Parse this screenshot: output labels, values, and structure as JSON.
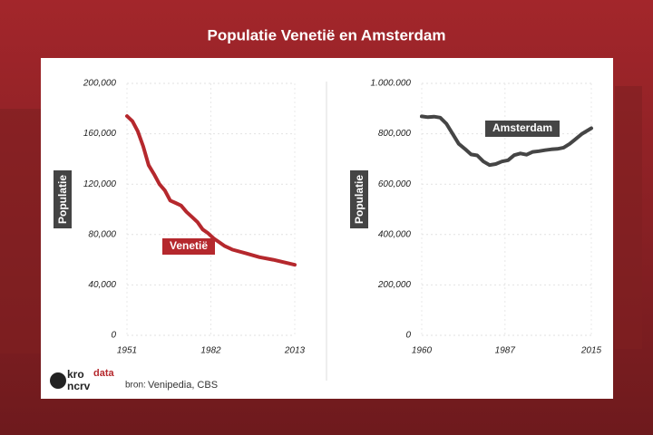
{
  "title": "Populatie Venetië en Amsterdam",
  "chart_data": [
    {
      "type": "line",
      "ylabel": "Populatie",
      "x": [
        1951,
        1953,
        1955,
        1957,
        1959,
        1961,
        1963,
        1965,
        1967,
        1969,
        1971,
        1973,
        1975,
        1977,
        1979,
        1981,
        1983,
        1985,
        1987,
        1990,
        1995,
        2000,
        2005,
        2010,
        2013
      ],
      "series": [
        {
          "name": "Venetië",
          "color": "#b5282d",
          "values": [
            174000,
            170000,
            162000,
            150000,
            135000,
            128000,
            120000,
            115000,
            107000,
            105000,
            103000,
            98000,
            94000,
            90000,
            84000,
            81000,
            77000,
            74000,
            71000,
            68000,
            65000,
            62000,
            60000,
            57500,
            56000
          ]
        }
      ],
      "xlim": [
        1951,
        2013
      ],
      "xticks": [
        1951,
        1982,
        2013
      ],
      "ylim": [
        0,
        200000
      ],
      "yticks": [
        0,
        {
          "value": 40000,
          "label": "40,000"
        },
        {
          "value": 80000,
          "label": "80,000"
        },
        {
          "value": 120000,
          "label": "120,000"
        },
        {
          "value": 160000,
          "label": "160,000"
        },
        {
          "value": 200000,
          "label": "200,000"
        }
      ],
      "grid": true
    },
    {
      "type": "line",
      "ylabel": "Populatie",
      "x": [
        1960,
        1962,
        1964,
        1966,
        1968,
        1970,
        1972,
        1974,
        1976,
        1978,
        1980,
        1982,
        1984,
        1986,
        1988,
        1990,
        1992,
        1994,
        1996,
        1998,
        2000,
        2002,
        2004,
        2006,
        2008,
        2010,
        2012,
        2015
      ],
      "series": [
        {
          "name": "Amsterdam",
          "color": "#454545",
          "values": [
            869000,
            866000,
            868000,
            864000,
            840000,
            800000,
            760000,
            740000,
            718000,
            714000,
            690000,
            676000,
            680000,
            690000,
            695000,
            715000,
            722000,
            717000,
            728000,
            731000,
            735000,
            738000,
            740000,
            745000,
            760000,
            780000,
            800000,
            822000
          ]
        }
      ],
      "xlim": [
        1960,
        2015
      ],
      "xticks": [
        1960,
        1987,
        2015
      ],
      "ylim": [
        0,
        1000000
      ],
      "yticks": [
        0,
        {
          "value": 200000,
          "label": "200,000"
        },
        {
          "value": 400000,
          "label": "400,000"
        },
        {
          "value": 600000,
          "label": "600,000"
        },
        {
          "value": 800000,
          "label": "800,000"
        },
        {
          "value": 1000000,
          "label": "1.000.000"
        }
      ],
      "grid": true
    }
  ],
  "footer": {
    "logo": [
      "kro",
      "ncrv"
    ],
    "brand": "data",
    "source_label": "bron:",
    "source": "Venipedia, CBS"
  }
}
